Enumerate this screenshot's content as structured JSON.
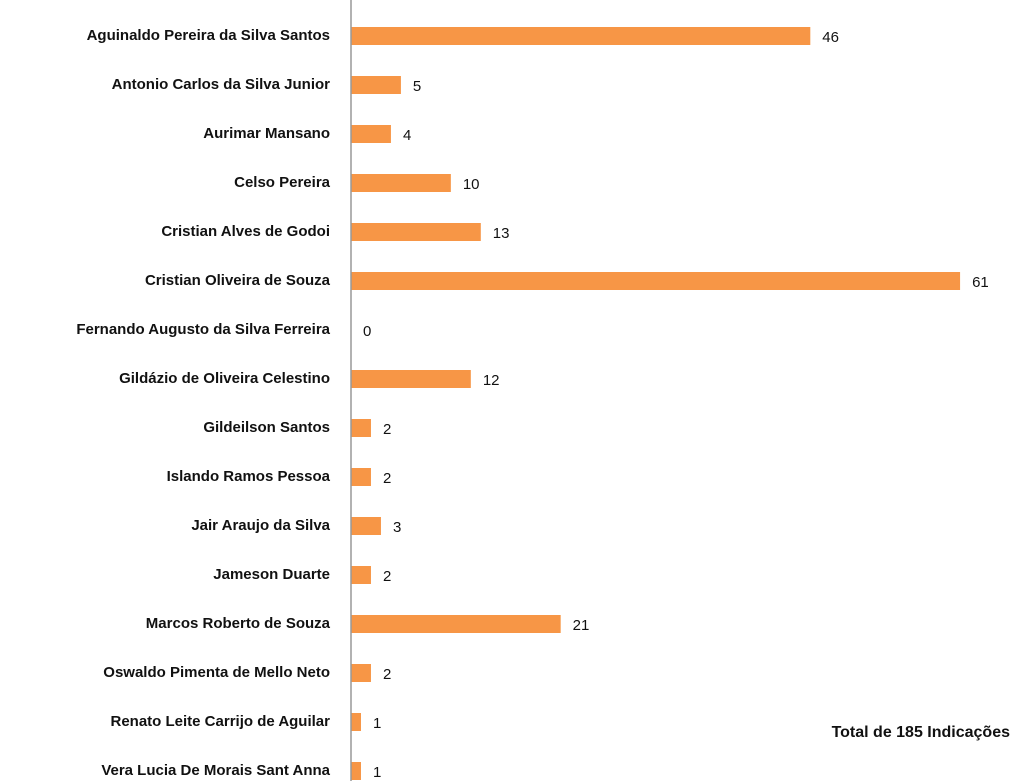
{
  "chart_data": {
    "type": "bar",
    "orientation": "horizontal",
    "categories": [
      "Aguinaldo Pereira da Silva Santos",
      "Antonio Carlos da Silva Junior",
      "Aurimar Mansano",
      "Celso Pereira",
      "Cristian Alves de Godoi",
      "Cristian Oliveira de Souza",
      "Fernando Augusto da Silva Ferreira",
      "Gildázio de Oliveira Celestino",
      "Gildeilson Santos",
      "Islando Ramos Pessoa",
      "Jair Araujo da Silva",
      "Jameson Duarte",
      "Marcos Roberto de Souza",
      "Oswaldo Pimenta de Mello Neto",
      "Renato Leite Carrijo de Aguilar",
      "Vera Lucia De Morais Sant Anna"
    ],
    "values": [
      46,
      5,
      4,
      10,
      13,
      61,
      0,
      12,
      2,
      2,
      3,
      2,
      21,
      2,
      1,
      1
    ],
    "color": "#f79646",
    "xlim": [
      0,
      66
    ],
    "annotation": "Total de 185 Indicações"
  }
}
